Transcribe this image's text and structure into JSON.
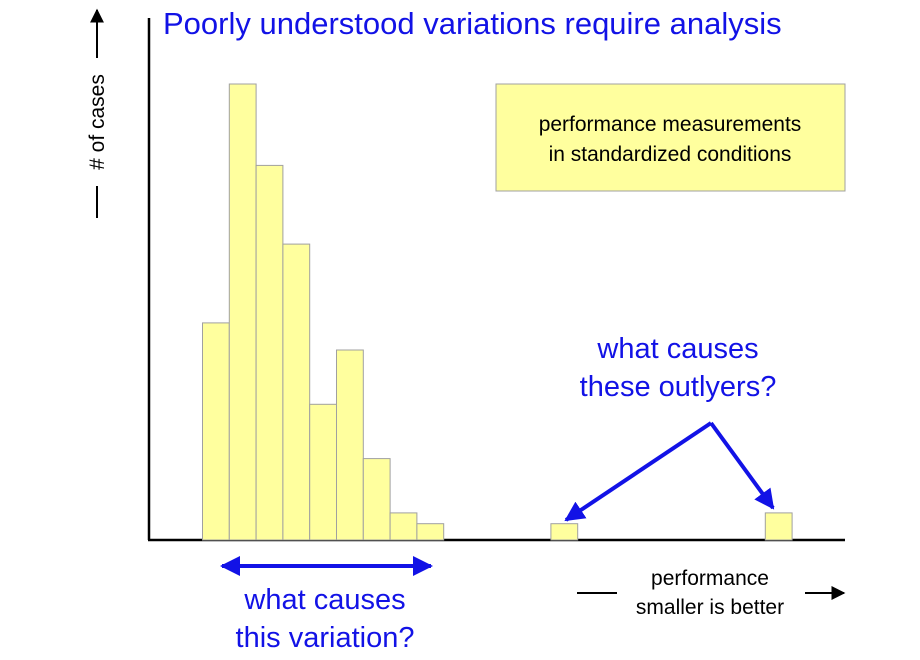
{
  "title": "Poorly understood variations require analysis",
  "y_axis_label": "# of cases",
  "x_axis_label": {
    "line1": "performance",
    "line2": "smaller is better"
  },
  "note_box": {
    "line1": "performance measurements",
    "line2": "in standardized conditions"
  },
  "outlier_callout": {
    "line1": "what causes",
    "line2": "these outlyers?"
  },
  "variation_callout": {
    "line1": "what causes",
    "line2": "this variation?"
  },
  "colors": {
    "bar_fill": "#ffff9e",
    "bar_stroke": "#a0a0a0",
    "note_fill": "#ffff9e",
    "annotation_blue": "#1212e6",
    "axis": "#000000"
  },
  "chart_data": {
    "type": "bar",
    "main_cluster": {
      "bin_start": 0,
      "counts": [
        80,
        168,
        138,
        109,
        50,
        70,
        30,
        10,
        6
      ]
    },
    "outliers": [
      {
        "bin": 13,
        "count": 6
      },
      {
        "bin": 21,
        "count": 10
      }
    ],
    "ylim": [
      0,
      168
    ]
  }
}
